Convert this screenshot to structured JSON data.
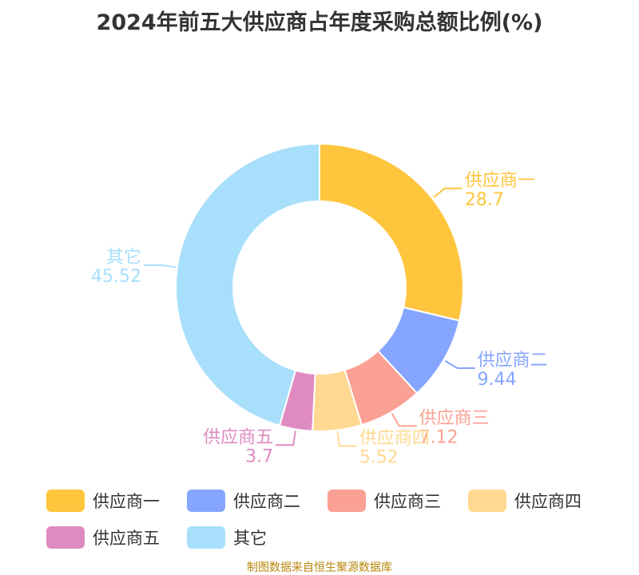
{
  "chart_data": {
    "type": "pie",
    "donut": true,
    "title": "2024年前五大供应商占年度采购总额比例(%)",
    "categories": [
      "供应商一",
      "供应商二",
      "供应商三",
      "供应商四",
      "供应商五",
      "其它"
    ],
    "values": [
      28.7,
      9.44,
      7.12,
      5.52,
      3.7,
      45.52
    ],
    "colors": [
      "#ffc53d",
      "#85a5ff",
      "#fba094",
      "#ffd991",
      "#df8bc2",
      "#a8dffb"
    ],
    "legend_placement": "bottom"
  },
  "footer": {
    "source": "制图数据来自恒生聚源数据库"
  }
}
